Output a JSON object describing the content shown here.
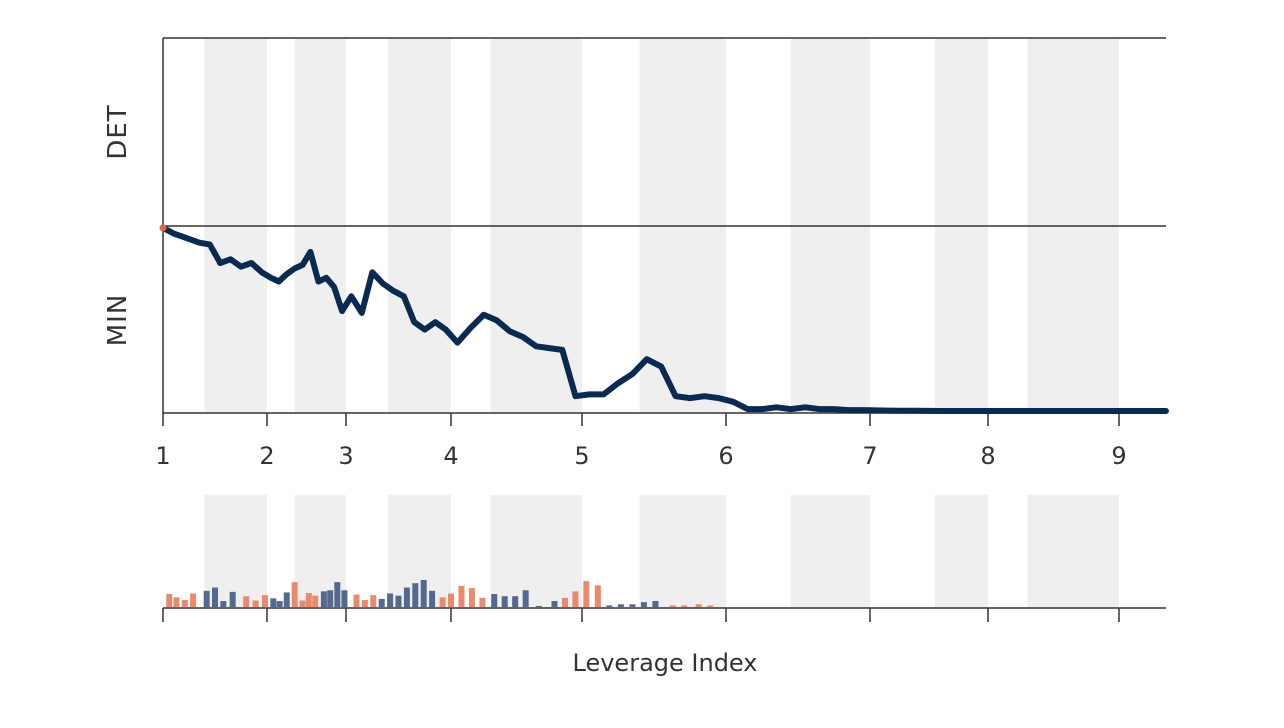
{
  "chart_data": {
    "type": "line",
    "xlabel": "Leverage Index",
    "band_labels": [
      "DET",
      "MIN"
    ],
    "x_ticks": [
      "1",
      "2",
      "3",
      "4",
      "5",
      "6",
      "7",
      "8",
      "9"
    ],
    "xlim": [
      1,
      9.35
    ],
    "shaded_regions": [
      [
        1.4,
        2.0
      ],
      [
        2.35,
        3.0
      ],
      [
        3.4,
        4.0
      ],
      [
        4.3,
        5.0
      ],
      [
        5.4,
        6.0
      ],
      [
        6.45,
        7.0
      ],
      [
        7.55,
        8.0
      ],
      [
        8.3,
        9.0
      ]
    ],
    "line_series": {
      "color": "#0b2a52",
      "start_marker_color": "#e0643c",
      "ylim": [
        0,
        1
      ],
      "x": [
        1.0,
        1.1,
        1.25,
        1.35,
        1.45,
        1.55,
        1.65,
        1.75,
        1.85,
        1.95,
        2.05,
        2.15,
        2.25,
        2.35,
        2.45,
        2.55,
        2.65,
        2.75,
        2.85,
        2.95,
        3.05,
        3.15,
        3.25,
        3.35,
        3.45,
        3.55,
        3.65,
        3.75,
        3.85,
        3.95,
        4.05,
        4.15,
        4.25,
        4.35,
        4.45,
        4.55,
        4.65,
        4.75,
        4.85,
        4.95,
        5.05,
        5.15,
        5.25,
        5.35,
        5.45,
        5.55,
        5.65,
        5.75,
        5.85,
        5.95,
        6.05,
        6.15,
        6.25,
        6.35,
        6.45,
        6.55,
        6.65,
        6.75,
        6.85,
        6.95,
        7.05,
        7.15,
        7.25,
        7.4,
        7.6,
        7.8,
        8.0,
        8.3,
        8.6,
        9.0,
        9.35
      ],
      "y": [
        0.99,
        0.96,
        0.93,
        0.91,
        0.9,
        0.8,
        0.82,
        0.78,
        0.8,
        0.75,
        0.72,
        0.7,
        0.74,
        0.77,
        0.79,
        0.86,
        0.7,
        0.72,
        0.67,
        0.54,
        0.62,
        0.53,
        0.75,
        0.69,
        0.65,
        0.62,
        0.48,
        0.44,
        0.48,
        0.44,
        0.37,
        0.45,
        0.52,
        0.49,
        0.43,
        0.4,
        0.35,
        0.34,
        0.33,
        0.08,
        0.09,
        0.09,
        0.15,
        0.2,
        0.28,
        0.24,
        0.08,
        0.07,
        0.08,
        0.07,
        0.05,
        0.01,
        0.01,
        0.02,
        0.01,
        0.02,
        0.01,
        0.01,
        0.005,
        0.005,
        0.003,
        0.002,
        0.001,
        0.001,
        0.0,
        0.0,
        0.0,
        0.0,
        0.0,
        0.0,
        0.0
      ]
    },
    "bar_series": {
      "ylim": [
        0,
        1
      ],
      "colors": {
        "positive": "#ea8a6c",
        "negative": "#54698f"
      },
      "bars": [
        {
          "x": 1.06,
          "v": 0.48,
          "s": "positive"
        },
        {
          "x": 1.13,
          "v": 0.36,
          "s": "positive"
        },
        {
          "x": 1.21,
          "v": 0.26,
          "s": "positive"
        },
        {
          "x": 1.29,
          "v": 0.5,
          "s": "positive"
        },
        {
          "x": 1.42,
          "v": 0.6,
          "s": "negative"
        },
        {
          "x": 1.5,
          "v": 0.72,
          "s": "negative"
        },
        {
          "x": 1.58,
          "v": 0.22,
          "s": "negative"
        },
        {
          "x": 1.67,
          "v": 0.56,
          "s": "negative"
        },
        {
          "x": 1.8,
          "v": 0.4,
          "s": "positive"
        },
        {
          "x": 1.89,
          "v": 0.24,
          "s": "positive"
        },
        {
          "x": 1.98,
          "v": 0.44,
          "s": "positive"
        },
        {
          "x": 2.08,
          "v": 0.32,
          "s": "negative"
        },
        {
          "x": 2.16,
          "v": 0.22,
          "s": "negative"
        },
        {
          "x": 2.25,
          "v": 0.54,
          "s": "negative"
        },
        {
          "x": 2.35,
          "v": 0.92,
          "s": "positive"
        },
        {
          "x": 2.45,
          "v": 0.24,
          "s": "positive"
        },
        {
          "x": 2.53,
          "v": 0.52,
          "s": "positive"
        },
        {
          "x": 2.61,
          "v": 0.42,
          "s": "positive"
        },
        {
          "x": 2.72,
          "v": 0.58,
          "s": "negative"
        },
        {
          "x": 2.8,
          "v": 0.62,
          "s": "negative"
        },
        {
          "x": 2.89,
          "v": 0.92,
          "s": "negative"
        },
        {
          "x": 2.98,
          "v": 0.62,
          "s": "negative"
        },
        {
          "x": 3.1,
          "v": 0.46,
          "s": "positive"
        },
        {
          "x": 3.18,
          "v": 0.26,
          "s": "positive"
        },
        {
          "x": 3.26,
          "v": 0.44,
          "s": "positive"
        },
        {
          "x": 3.34,
          "v": 0.3,
          "s": "negative"
        },
        {
          "x": 3.42,
          "v": 0.5,
          "s": "negative"
        },
        {
          "x": 3.5,
          "v": 0.42,
          "s": "negative"
        },
        {
          "x": 3.58,
          "v": 0.72,
          "s": "negative"
        },
        {
          "x": 3.66,
          "v": 0.88,
          "s": "negative"
        },
        {
          "x": 3.74,
          "v": 1.0,
          "s": "negative"
        },
        {
          "x": 3.82,
          "v": 0.6,
          "s": "negative"
        },
        {
          "x": 3.92,
          "v": 0.36,
          "s": "positive"
        },
        {
          "x": 4.0,
          "v": 0.5,
          "s": "positive"
        },
        {
          "x": 4.08,
          "v": 0.78,
          "s": "positive"
        },
        {
          "x": 4.16,
          "v": 0.7,
          "s": "positive"
        },
        {
          "x": 4.24,
          "v": 0.34,
          "s": "positive"
        },
        {
          "x": 4.33,
          "v": 0.48,
          "s": "negative"
        },
        {
          "x": 4.41,
          "v": 0.4,
          "s": "negative"
        },
        {
          "x": 4.49,
          "v": 0.4,
          "s": "negative"
        },
        {
          "x": 4.57,
          "v": 0.62,
          "s": "negative"
        },
        {
          "x": 4.67,
          "v": 0.04,
          "s": "negative"
        },
        {
          "x": 4.79,
          "v": 0.22,
          "s": "negative"
        },
        {
          "x": 4.87,
          "v": 0.34,
          "s": "positive"
        },
        {
          "x": 4.95,
          "v": 0.58,
          "s": "positive"
        },
        {
          "x": 5.03,
          "v": 0.96,
          "s": "positive"
        },
        {
          "x": 5.11,
          "v": 0.8,
          "s": "positive"
        },
        {
          "x": 5.19,
          "v": 0.06,
          "s": "negative"
        },
        {
          "x": 5.27,
          "v": 0.1,
          "s": "negative"
        },
        {
          "x": 5.35,
          "v": 0.1,
          "s": "negative"
        },
        {
          "x": 5.43,
          "v": 0.18,
          "s": "negative"
        },
        {
          "x": 5.51,
          "v": 0.22,
          "s": "negative"
        },
        {
          "x": 5.63,
          "v": 0.06,
          "s": "positive"
        },
        {
          "x": 5.71,
          "v": 0.06,
          "s": "positive"
        },
        {
          "x": 5.81,
          "v": 0.1,
          "s": "positive"
        },
        {
          "x": 5.89,
          "v": 0.06,
          "s": "positive"
        }
      ]
    }
  }
}
